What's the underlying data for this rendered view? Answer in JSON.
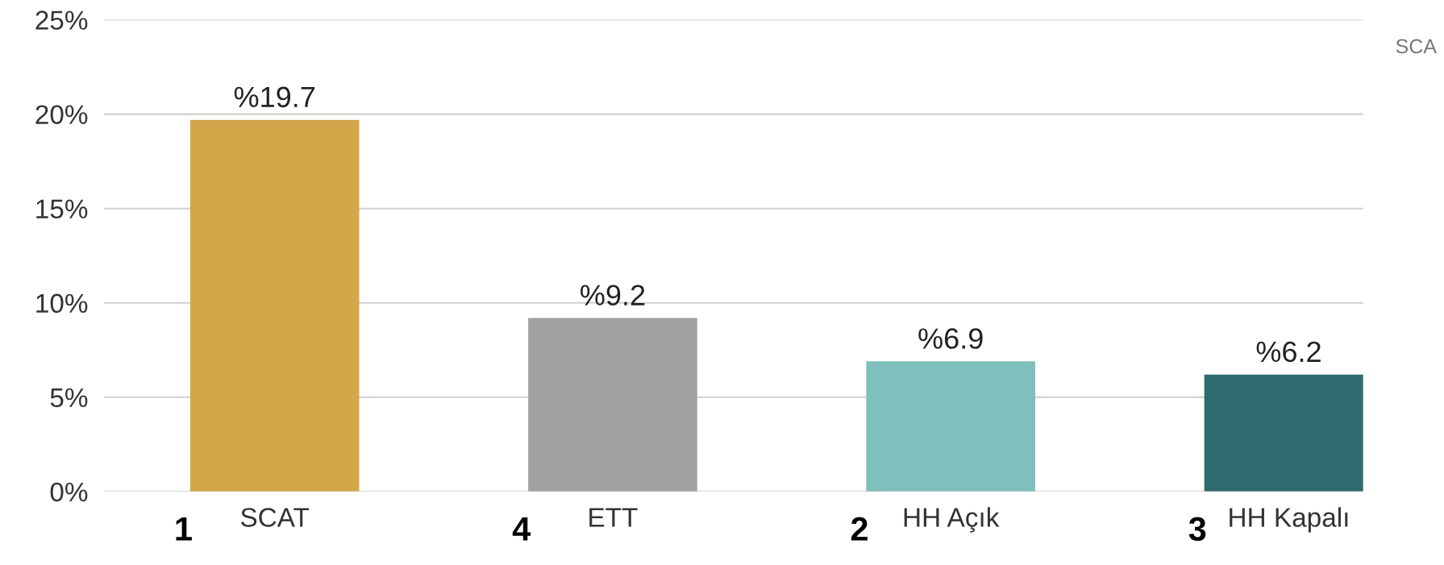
{
  "chart_data": {
    "type": "bar",
    "categories": [
      "SCAT",
      "ETT",
      "HH Açık",
      "HH Kapalı"
    ],
    "values": [
      19.7,
      9.2,
      6.9,
      6.2
    ],
    "colors": [
      "#d4a64a",
      "#a1a1a1",
      "#7fbfbc",
      "#2f6b6e"
    ],
    "value_labels": [
      "%19.7",
      "%9.2",
      "%6.9",
      "%6.2"
    ],
    "ylim": [
      0,
      25
    ],
    "yticks": [
      {
        "value": 0,
        "label": "0%"
      },
      {
        "value": 5,
        "label": "5%"
      },
      {
        "value": 10,
        "label": "10%"
      },
      {
        "value": 15,
        "label": "15%"
      },
      {
        "value": 20,
        "label": "20%"
      },
      {
        "value": 25,
        "label": "25%"
      }
    ],
    "grid": "y",
    "annotations": [
      "1",
      "4",
      "2",
      "3",
      "SCA"
    ]
  }
}
